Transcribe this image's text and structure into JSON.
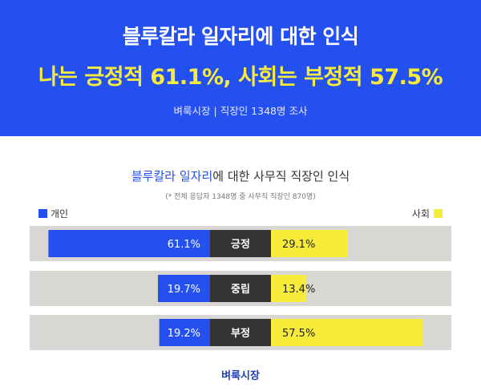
{
  "header": {
    "title": "블루칼라 일자리에 대한 인식",
    "headline": "나는 긍정적 61.1%, 사회는 부정적 57.5%",
    "source": "벼룩시장 | 직장인 1348명 조사"
  },
  "chart": {
    "title_highlight": "블루칼라 일자리",
    "title_rest": "에 대한 사무직 직장인 인식",
    "note": "(* 전체 응답자 1348명 중 사무직 직장인 870명)",
    "legend_left": "개인",
    "legend_right": "사회"
  },
  "footer": {
    "logo": "벼룩시장"
  },
  "colors": {
    "personal": "#2450f0",
    "society": "#f7ec3a",
    "category_bg": "#333333",
    "row_bg": "#d9d7d3"
  },
  "chart_data": {
    "type": "bar",
    "title": "블루칼라 일자리에 대한 사무직 직장인 인식",
    "categories": [
      "긍정",
      "중립",
      "부정"
    ],
    "series": [
      {
        "name": "개인",
        "values": [
          61.1,
          19.7,
          19.2
        ]
      },
      {
        "name": "사회",
        "values": [
          29.1,
          13.4,
          57.5
        ]
      }
    ],
    "value_labels": {
      "개인": [
        "61.1%",
        "19.7%",
        "19.2%"
      ],
      "사회": [
        "29.1%",
        "13.4%",
        "57.5%"
      ]
    },
    "unit": "%",
    "legend": "top"
  }
}
